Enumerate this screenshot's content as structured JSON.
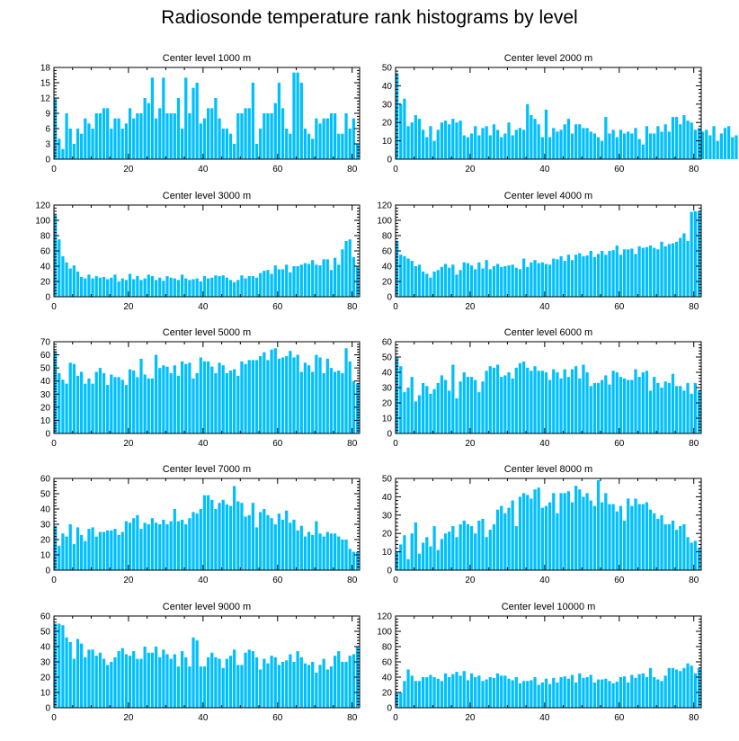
{
  "title": "Radiosonde temperature rank histograms by level",
  "bar_color": "#00bfff",
  "x_ticks": [
    0,
    20,
    40,
    60,
    80
  ],
  "chart_data": [
    {
      "type": "bar",
      "title": "Center level 1000 m",
      "xlim": [
        0,
        82
      ],
      "ylim": [
        0,
        18
      ],
      "yticks": [
        0,
        3,
        6,
        9,
        12,
        15,
        18
      ],
      "values": [
        12,
        4,
        2,
        9,
        6,
        3,
        6,
        5,
        8,
        7,
        6,
        9,
        9,
        10,
        10,
        6,
        8,
        8,
        6,
        7,
        10,
        8,
        9,
        9,
        12,
        11,
        16,
        8,
        10,
        16,
        9,
        9,
        9,
        12,
        6,
        16,
        9,
        14,
        15,
        7,
        8,
        10,
        10,
        12,
        8,
        6,
        6,
        5,
        3,
        9,
        9,
        10,
        10,
        15,
        3,
        6,
        9,
        9,
        9,
        11,
        15,
        10,
        6,
        5,
        17,
        17,
        15,
        6,
        5,
        4,
        8,
        7,
        8,
        8,
        9,
        9,
        5,
        5,
        9,
        6,
        8,
        3
      ]
    },
    {
      "type": "bar",
      "title": "Center level 2000 m",
      "xlim": [
        0,
        82
      ],
      "ylim": [
        0,
        50
      ],
      "yticks": [
        0,
        10,
        20,
        30,
        40,
        50
      ],
      "values": [
        47,
        30,
        33,
        18,
        20,
        24,
        22,
        16,
        12,
        18,
        10,
        16,
        20,
        21,
        19,
        22,
        20,
        21,
        13,
        12,
        14,
        18,
        13,
        17,
        18,
        13,
        19,
        16,
        12,
        14,
        20,
        13,
        16,
        17,
        16,
        30,
        24,
        22,
        19,
        12,
        27,
        12,
        17,
        15,
        16,
        19,
        22,
        14,
        19,
        19,
        17,
        17,
        15,
        14,
        12,
        10,
        23,
        14,
        16,
        12,
        16,
        14,
        15,
        14,
        17,
        11,
        8,
        18,
        14,
        14,
        18,
        15,
        19,
        15,
        23,
        23,
        19,
        24,
        21,
        20,
        16,
        17,
        15,
        16,
        13,
        18,
        10,
        14,
        17,
        18,
        12,
        13
      ]
    },
    {
      "type": "bar",
      "title": "Center level 3000 m",
      "xlim": [
        0,
        82
      ],
      "ylim": [
        0,
        120
      ],
      "yticks": [
        0,
        20,
        40,
        60,
        80,
        100,
        120
      ],
      "values": [
        107,
        75,
        53,
        45,
        37,
        41,
        33,
        26,
        24,
        29,
        24,
        27,
        25,
        26,
        23,
        25,
        29,
        20,
        24,
        22,
        30,
        23,
        27,
        22,
        24,
        29,
        27,
        22,
        25,
        21,
        27,
        25,
        24,
        22,
        29,
        24,
        22,
        23,
        24,
        20,
        27,
        24,
        25,
        28,
        27,
        28,
        25,
        22,
        19,
        22,
        28,
        24,
        27,
        27,
        25,
        31,
        34,
        35,
        30,
        41,
        36,
        36,
        42,
        32,
        40,
        40,
        42,
        44,
        43,
        48,
        42,
        41,
        49,
        49,
        35,
        51,
        42,
        62,
        73,
        75,
        52,
        40
      ]
    },
    {
      "type": "bar",
      "title": "Center level 4000 m",
      "xlim": [
        0,
        82
      ],
      "ylim": [
        0,
        120
      ],
      "yticks": [
        0,
        20,
        40,
        60,
        80,
        100,
        120
      ],
      "values": [
        73,
        55,
        53,
        50,
        47,
        40,
        42,
        33,
        30,
        25,
        33,
        35,
        39,
        43,
        38,
        42,
        29,
        35,
        45,
        44,
        41,
        36,
        45,
        37,
        48,
        36,
        40,
        43,
        39,
        40,
        41,
        42,
        38,
        36,
        50,
        39,
        45,
        48,
        44,
        45,
        43,
        42,
        50,
        49,
        53,
        47,
        55,
        48,
        55,
        57,
        53,
        54,
        60,
        52,
        56,
        60,
        55,
        60,
        61,
        67,
        55,
        62,
        62,
        63,
        56,
        66,
        64,
        65,
        67,
        64,
        62,
        72,
        66,
        69,
        70,
        72,
        77,
        83,
        73,
        111,
        112,
        112
      ]
    },
    {
      "type": "bar",
      "title": "Center level 5000 m",
      "xlim": [
        0,
        82
      ],
      "ylim": [
        0,
        70
      ],
      "yticks": [
        0,
        10,
        20,
        30,
        40,
        50,
        60,
        70
      ],
      "values": [
        63,
        46,
        41,
        38,
        54,
        53,
        44,
        47,
        38,
        42,
        38,
        47,
        50,
        46,
        37,
        45,
        43,
        43,
        41,
        37,
        49,
        48,
        43,
        57,
        45,
        42,
        42,
        60,
        50,
        52,
        51,
        46,
        52,
        44,
        55,
        53,
        54,
        42,
        46,
        58,
        55,
        55,
        51,
        46,
        54,
        52,
        46,
        48,
        49,
        44,
        55,
        53,
        56,
        56,
        56,
        59,
        62,
        56,
        64,
        65,
        57,
        58,
        59,
        63,
        58,
        60,
        47,
        54,
        52,
        47,
        60,
        58,
        46,
        57,
        50,
        47,
        48,
        46,
        65,
        55,
        40,
        38
      ]
    },
    {
      "type": "bar",
      "title": "Center level 6000 m",
      "xlim": [
        0,
        82
      ],
      "ylim": [
        0,
        60
      ],
      "yticks": [
        0,
        10,
        20,
        30,
        40,
        50,
        60
      ],
      "values": [
        50,
        44,
        27,
        30,
        37,
        21,
        25,
        33,
        31,
        26,
        29,
        33,
        38,
        35,
        28,
        45,
        23,
        34,
        40,
        37,
        37,
        35,
        27,
        34,
        41,
        44,
        43,
        45,
        37,
        38,
        40,
        36,
        43,
        46,
        47,
        43,
        41,
        44,
        41,
        41,
        40,
        35,
        42,
        40,
        36,
        42,
        37,
        42,
        44,
        36,
        45,
        40,
        31,
        33,
        33,
        35,
        38,
        32,
        41,
        40,
        37,
        36,
        35,
        35,
        42,
        37,
        40,
        41,
        28,
        37,
        33,
        30,
        34,
        33,
        39,
        31,
        31,
        28,
        33,
        26,
        33,
        28
      ]
    },
    {
      "type": "bar",
      "title": "Center level 7000 m",
      "xlim": [
        0,
        82
      ],
      "ylim": [
        0,
        60
      ],
      "yticks": [
        0,
        10,
        20,
        30,
        40,
        50,
        60
      ],
      "values": [
        29,
        16,
        24,
        22,
        30,
        17,
        28,
        23,
        19,
        27,
        28,
        22,
        25,
        25,
        26,
        26,
        27,
        23,
        25,
        32,
        31,
        34,
        36,
        27,
        31,
        30,
        34,
        31,
        30,
        33,
        30,
        32,
        40,
        32,
        33,
        30,
        34,
        38,
        37,
        40,
        49,
        49,
        46,
        40,
        44,
        46,
        43,
        42,
        55,
        45,
        44,
        35,
        36,
        44,
        28,
        38,
        40,
        36,
        34,
        30,
        37,
        33,
        39,
        31,
        33,
        26,
        29,
        22,
        25,
        23,
        32,
        24,
        22,
        25,
        24,
        24,
        22,
        20,
        20,
        14,
        12,
        12
      ]
    },
    {
      "type": "bar",
      "title": "Center level 8000 m",
      "xlim": [
        0,
        82
      ],
      "ylim": [
        0,
        50
      ],
      "yticks": [
        0,
        10,
        20,
        30,
        40,
        50
      ],
      "values": [
        10,
        14,
        19,
        6,
        20,
        26,
        9,
        15,
        18,
        13,
        24,
        11,
        17,
        20,
        21,
        24,
        18,
        25,
        27,
        25,
        24,
        20,
        27,
        28,
        18,
        22,
        25,
        33,
        35,
        31,
        34,
        38,
        24,
        40,
        42,
        41,
        39,
        44,
        45,
        34,
        35,
        37,
        42,
        31,
        42,
        42,
        43,
        37,
        46,
        44,
        40,
        42,
        38,
        35,
        49,
        37,
        42,
        36,
        36,
        32,
        35,
        27,
        39,
        35,
        39,
        36,
        36,
        37,
        33,
        31,
        28,
        30,
        25,
        25,
        27,
        22,
        24,
        25,
        18,
        15,
        16,
        12
      ]
    },
    {
      "type": "bar",
      "title": "Center level 9000 m",
      "xlim": [
        0,
        82
      ],
      "ylim": [
        0,
        60
      ],
      "yticks": [
        0,
        10,
        20,
        30,
        40,
        50,
        60
      ],
      "values": [
        55,
        55,
        54,
        46,
        43,
        32,
        45,
        42,
        33,
        38,
        38,
        34,
        36,
        32,
        28,
        30,
        33,
        37,
        39,
        35,
        34,
        37,
        32,
        32,
        40,
        36,
        36,
        40,
        33,
        38,
        35,
        32,
        35,
        27,
        37,
        33,
        27,
        46,
        44,
        27,
        27,
        33,
        36,
        33,
        32,
        26,
        32,
        34,
        38,
        28,
        28,
        36,
        38,
        37,
        33,
        25,
        32,
        29,
        34,
        33,
        28,
        30,
        31,
        35,
        30,
        37,
        33,
        29,
        28,
        30,
        23,
        28,
        32,
        25,
        27,
        34,
        37,
        30,
        30,
        34,
        35,
        40
      ]
    },
    {
      "type": "bar",
      "title": "Center level 10000 m",
      "xlim": [
        0,
        82
      ],
      "ylim": [
        0,
        120
      ],
      "yticks": [
        0,
        20,
        40,
        60,
        80,
        100,
        120
      ],
      "values": [
        20,
        20,
        35,
        50,
        42,
        35,
        35,
        40,
        40,
        43,
        40,
        38,
        35,
        45,
        40,
        44,
        47,
        42,
        48,
        36,
        45,
        40,
        42,
        35,
        37,
        40,
        39,
        45,
        42,
        42,
        38,
        36,
        40,
        32,
        35,
        35,
        36,
        40,
        30,
        33,
        38,
        31,
        39,
        33,
        40,
        41,
        38,
        43,
        33,
        45,
        39,
        40,
        43,
        33,
        37,
        37,
        38,
        35,
        32,
        34,
        40,
        41,
        33,
        43,
        39,
        44,
        45,
        40,
        52,
        40,
        37,
        35,
        42,
        52,
        52,
        50,
        48,
        52,
        58,
        55,
        45,
        52
      ]
    }
  ]
}
